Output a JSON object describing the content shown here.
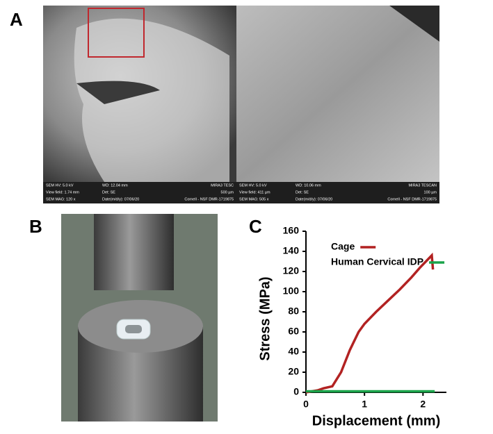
{
  "panel_labels": [
    "A",
    "B",
    "C"
  ],
  "sem_images": [
    {
      "info": [
        [
          "SEM HV: 5.0 kV",
          "WD: 12.04 mm",
          "MIRA3 TESC"
        ],
        [
          "View field: 1.74 mm",
          "Det: SE",
          "500 µm"
        ],
        [
          "SEM MAG: 120 x",
          "Date(m/d/y): 07/06/20",
          "Cornell - NSF DMR-1719875"
        ]
      ]
    },
    {
      "info": [
        [
          "SEM HV: 5.0 kV",
          "WD: 10.06 mm",
          "MIRA3 TESCAN"
        ],
        [
          "View field: 411 µm",
          "Det: SE",
          "100 µm"
        ],
        [
          "SEM MAG: 505 x",
          "Date(m/d/y): 07/06/20",
          "Cornell - NSF DMR-1719875"
        ]
      ]
    }
  ],
  "chart_data": {
    "type": "line",
    "xlabel": "Displacement (mm)",
    "ylabel": "Stress (MPa)",
    "xlim": [
      0,
      2.4
    ],
    "ylim": [
      0,
      160
    ],
    "xticks": [
      0,
      1,
      2
    ],
    "yticks": [
      0,
      20,
      40,
      60,
      80,
      100,
      120,
      140,
      160
    ],
    "series": [
      {
        "name": "Cage",
        "color": "#b22222",
        "x": [
          0,
          0.2,
          0.3,
          0.45,
          0.6,
          0.75,
          0.9,
          1.0,
          1.2,
          1.4,
          1.6,
          1.8,
          1.95,
          2.05,
          2.15,
          2.17
        ],
        "values": [
          0,
          2,
          4,
          6,
          20,
          42,
          60,
          68,
          80,
          91,
          102,
          114,
          124,
          130,
          136,
          122
        ]
      },
      {
        "name": "Human Cervical IDP",
        "color": "#1aa34a",
        "x": [
          0,
          2.2
        ],
        "values": [
          1,
          1
        ]
      }
    ]
  }
}
